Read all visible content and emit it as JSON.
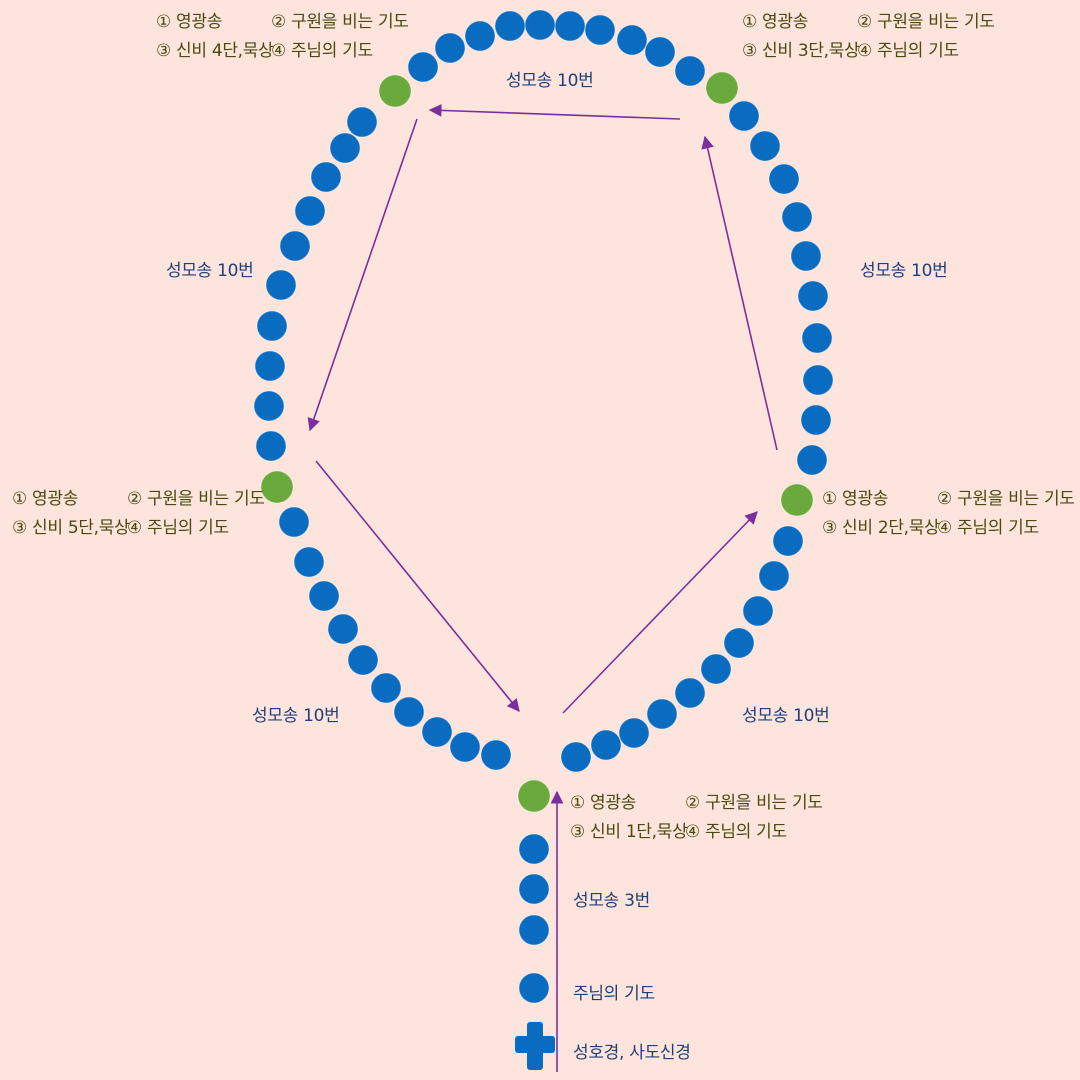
{
  "colors": {
    "background": "#fde4dc",
    "bead_blue": "#0a6cc0",
    "bead_green": "#6aaa3c",
    "arrow": "#7a2fa0",
    "count_text": "#1f3f7a",
    "mystery_text": "#4a4a10"
  },
  "icons": [
    "cross-icon",
    "bead-blue",
    "bead-green",
    "arrow"
  ],
  "decades": [
    {
      "id": "decade1",
      "line1_a": "① 영광송",
      "line1_b": "② 구원을 비는 기도",
      "line2_a": "③ 신비 1단,묵상",
      "line2_b": "④ 주님의 기도"
    },
    {
      "id": "decade2",
      "line1_a": "① 영광송",
      "line1_b": "② 구원을 비는 기도",
      "line2_a": "③ 신비 2단,묵상",
      "line2_b": "④ 주님의 기도"
    },
    {
      "id": "decade3",
      "line1_a": "① 영광송",
      "line1_b": "② 구원을 비는 기도",
      "line2_a": "③ 신비 3단,묵상",
      "line2_b": "④ 주님의 기도"
    },
    {
      "id": "decade4",
      "line1_a": "① 영광송",
      "line1_b": "② 구원을 비는 기도",
      "line2_a": "③ 신비 4단,묵상",
      "line2_b": "④ 주님의 기도"
    },
    {
      "id": "decade5",
      "line1_a": "① 영광송",
      "line1_b": "② 구원을 비는 기도",
      "line2_a": "③ 신비 5단,묵상",
      "line2_b": "④ 주님의 기도"
    }
  ],
  "counts": {
    "top": "성모송 10번",
    "left": "성모송 10번",
    "right": "성모송 10번",
    "bottom_left": "성모송 10번",
    "bottom_right": "성모송 10번",
    "stem": "성모송 3번"
  },
  "stem_labels": {
    "our_father": "주님의 기도",
    "cross": "성호경, 사도신경"
  }
}
